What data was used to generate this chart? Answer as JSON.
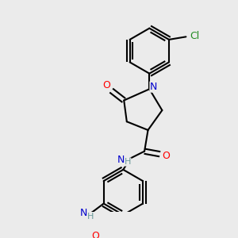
{
  "background_color": "#ebebeb",
  "bond_color": "#000000",
  "atom_colors": {
    "O": "#ff0000",
    "N": "#0000cd",
    "Cl": "#228b22",
    "H": "#6a9a9a"
  },
  "figsize": [
    3.0,
    3.0
  ],
  "dpi": 100
}
